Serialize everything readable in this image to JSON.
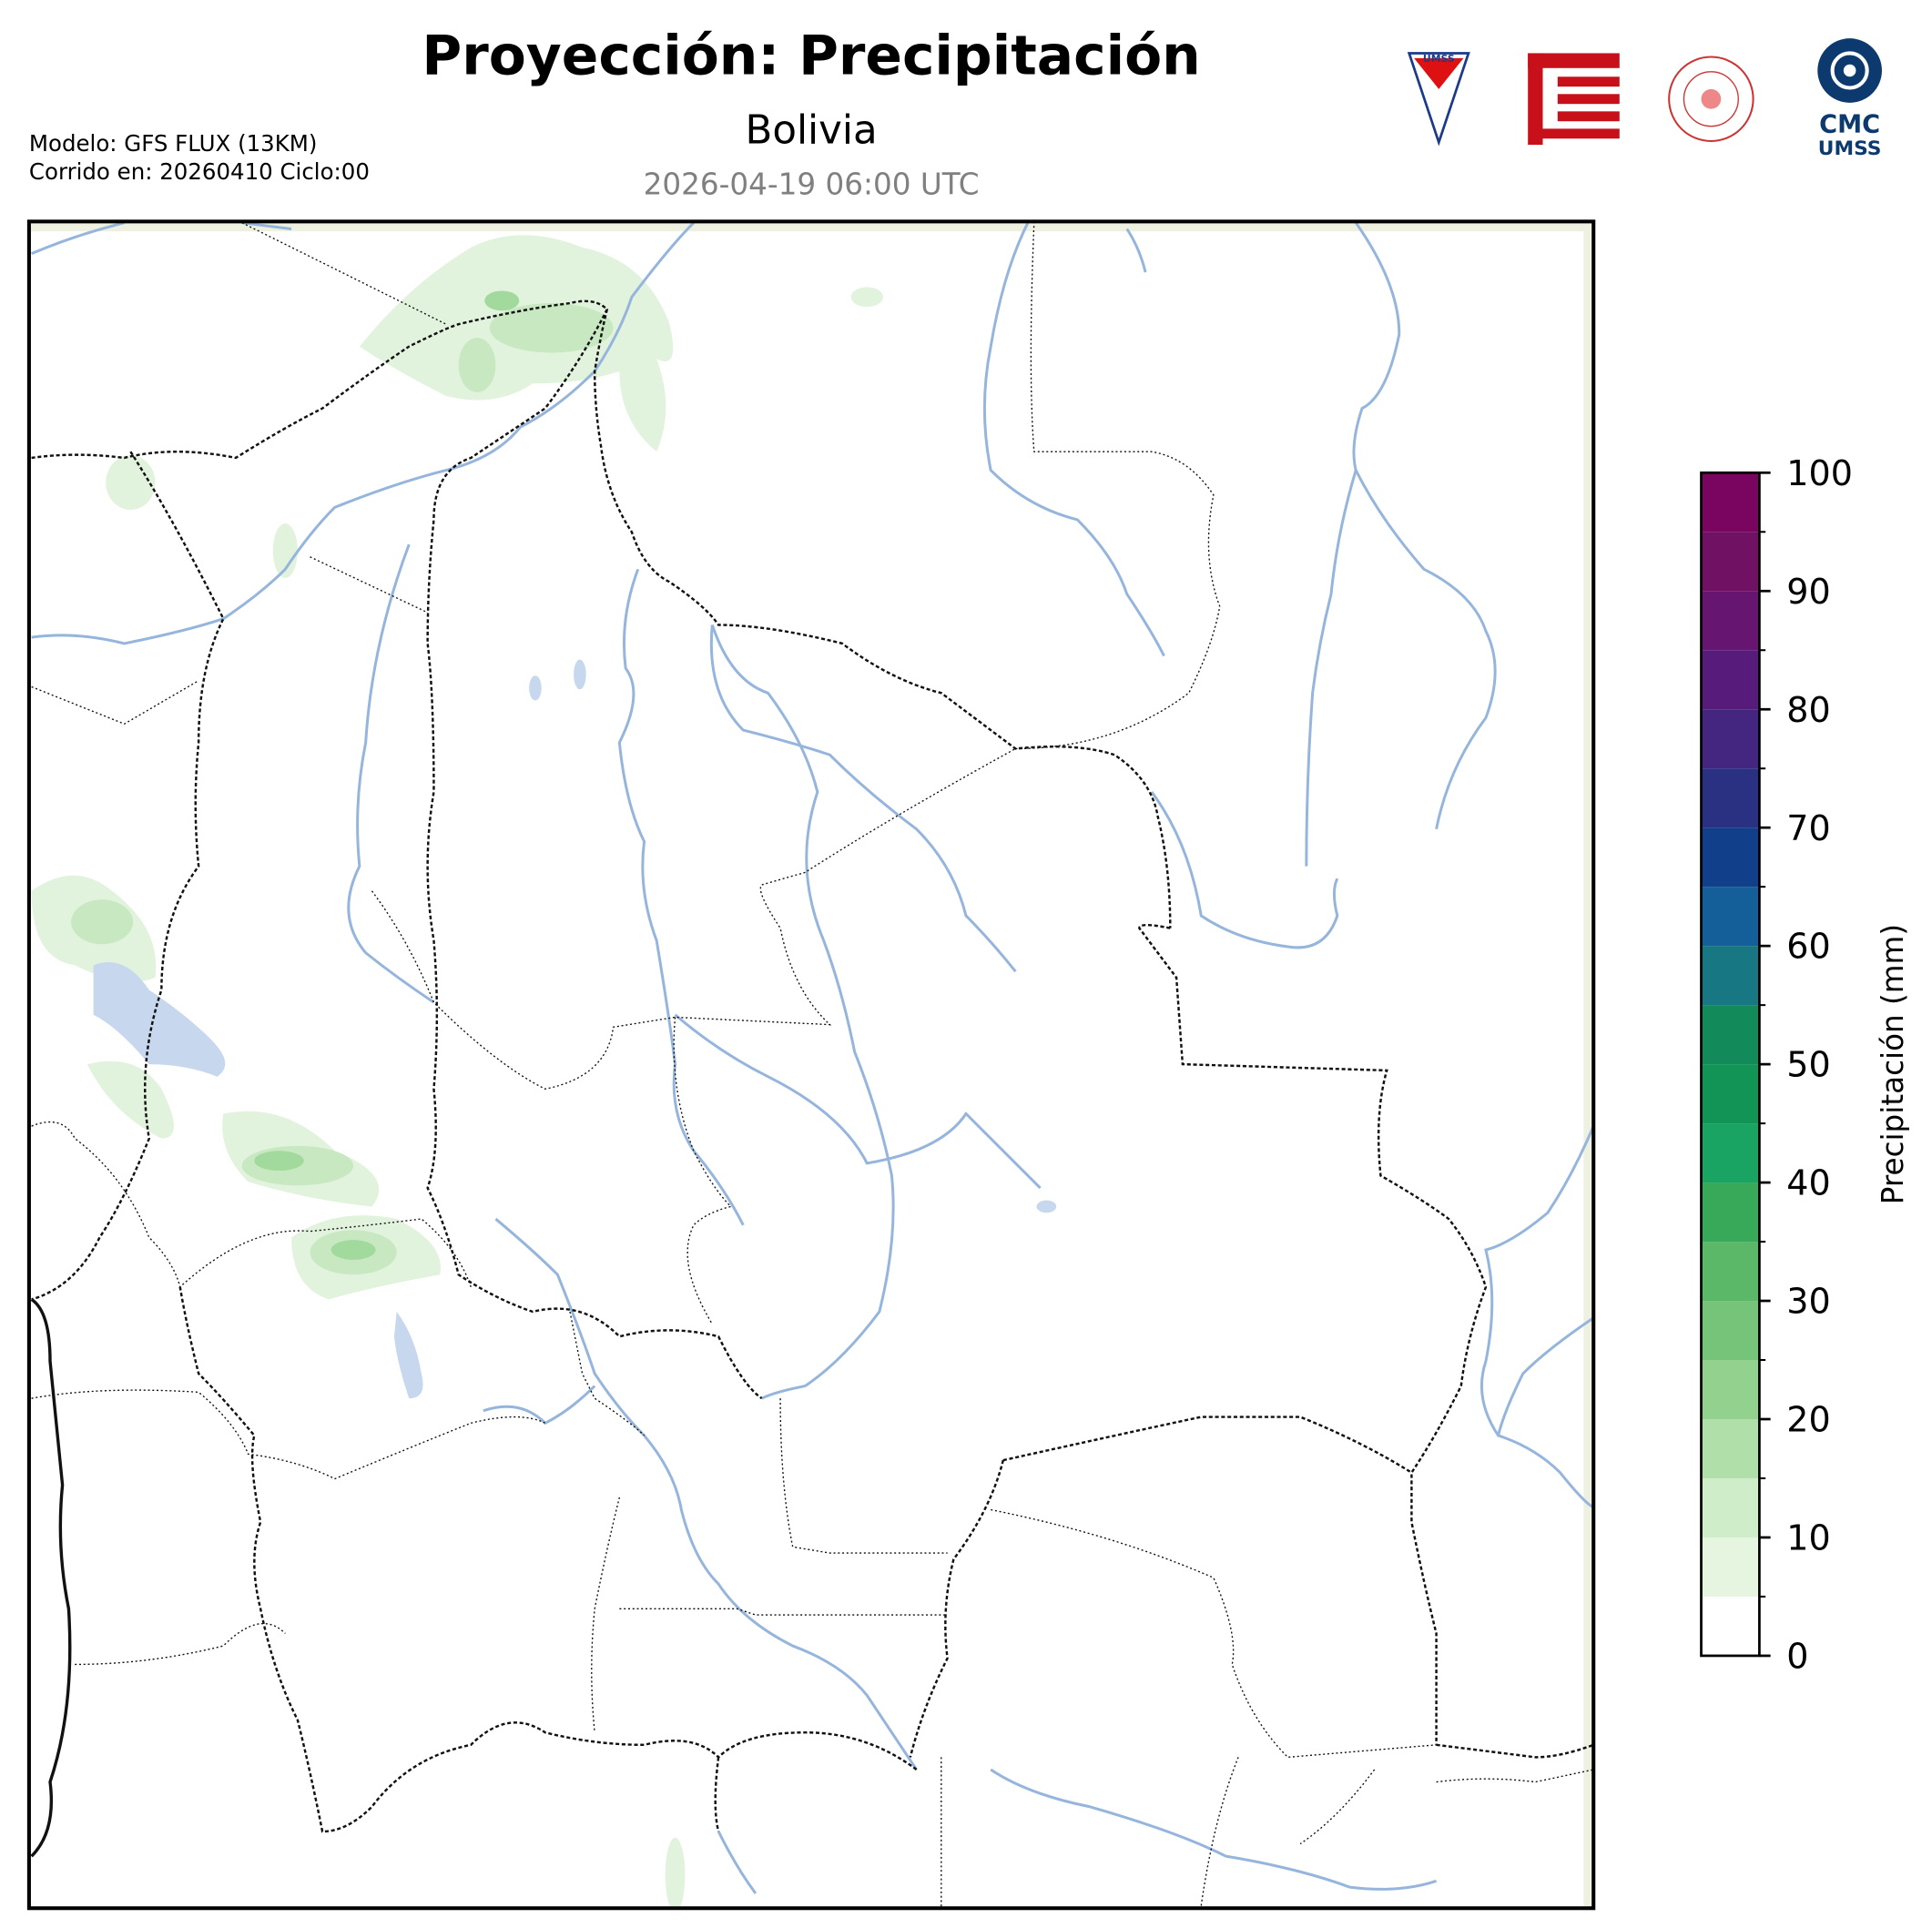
{
  "header": {
    "title": "Proyección: Precipitación",
    "subtitle": "Bolivia",
    "valid_time": "2026-04-19 06:00 UTC",
    "model_lines": [
      "Modelo: GFS FLUX (13KM)",
      "Corrido en: 20260410 Ciclo:00"
    ]
  },
  "logos": {
    "umss": "UMSS",
    "cmc": [
      "CMC",
      "UMSS"
    ]
  },
  "colorbar": {
    "label": "Precipitación (mm)",
    "clim": [
      0,
      100
    ],
    "ticks": [
      0,
      10,
      20,
      30,
      40,
      50,
      60,
      70,
      80,
      90,
      100
    ],
    "levels": [
      0,
      5,
      10,
      15,
      20,
      25,
      30,
      35,
      40,
      45,
      50,
      55,
      60,
      65,
      70,
      75,
      80,
      85,
      90,
      95,
      100
    ],
    "colors": [
      "#ffffff",
      "#e5f5e0",
      "#d0edca",
      "#b1dfaa",
      "#93d18f",
      "#76c47a",
      "#5bb869",
      "#37a958",
      "#19a463",
      "#139457",
      "#128a5a",
      "#177782",
      "#145f99",
      "#113f8a",
      "#2a3082",
      "#44257f",
      "#571b7b",
      "#661570",
      "#701164",
      "#7a0560"
    ]
  }
}
